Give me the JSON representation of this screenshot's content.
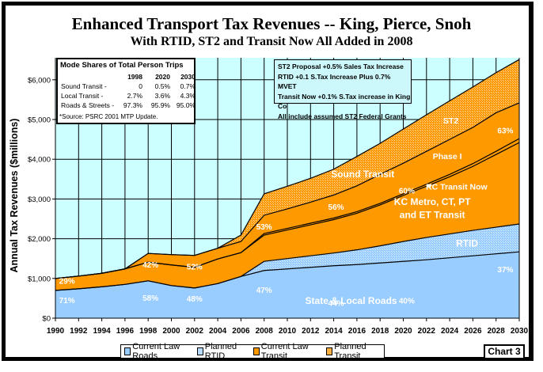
{
  "chart_data": {
    "type": "area",
    "title": "Enhanced Transport Tax Revenues -- King, Pierce, Snoh",
    "subtitle": "With RTID, ST2 and Transit Now All Added in 2008",
    "xlabel": "",
    "ylabel": "Annual Tax Revenues  ($millions)",
    "xlim": [
      1990,
      2030
    ],
    "ylim": [
      0,
      6500
    ],
    "grid": true,
    "x_ticks": [
      "1990",
      "1992",
      "1994",
      "1996",
      "1998",
      "2000",
      "2002",
      "2004",
      "2006",
      "2008",
      "2010",
      "2012",
      "2014",
      "2016",
      "2018",
      "2020",
      "2022",
      "2024",
      "2026",
      "2028",
      "2030"
    ],
    "y_ticks": [
      {
        "value": 0,
        "label": "$0"
      },
      {
        "value": 1000,
        "label": "$1,000"
      },
      {
        "value": 2000,
        "label": "$2,000"
      },
      {
        "value": 3000,
        "label": "$3,000"
      },
      {
        "value": 4000,
        "label": "$4,000"
      },
      {
        "value": 5000,
        "label": "$5,000"
      },
      {
        "value": 6000,
        "label": "$6,000"
      }
    ],
    "x": [
      1990,
      1992,
      1994,
      1996,
      1998,
      2000,
      2002,
      2004,
      2006,
      2008,
      2010,
      2012,
      2014,
      2016,
      2018,
      2020,
      2022,
      2024,
      2026,
      2028,
      2030
    ],
    "stacked_boundaries_note": "cumulative tops of each band in $millions",
    "series": [
      {
        "name": "Current Law Roads",
        "legend": true,
        "color": "#99ccff",
        "pattern": false,
        "top": [
          700,
          740,
          790,
          850,
          940,
          820,
          760,
          870,
          1050,
          1200,
          1240,
          1280,
          1320,
          1350,
          1390,
          1430,
          1470,
          1520,
          1570,
          1620,
          1670
        ]
      },
      {
        "name": "Planned RTID",
        "legend": true,
        "color": "#99ccff",
        "pattern": true,
        "top": [
          700,
          740,
          790,
          850,
          940,
          820,
          760,
          870,
          1050,
          1430,
          1500,
          1570,
          1640,
          1720,
          1820,
          1930,
          2030,
          2120,
          2210,
          2290,
          2370
        ]
      },
      {
        "name": "Current Law Transit",
        "legend": true,
        "color": "#ff9900",
        "pattern": false,
        "top": [
          1000,
          1060,
          1130,
          1240,
          1410,
          1340,
          1280,
          1490,
          1650,
          2090,
          2220,
          2350,
          2480,
          2640,
          2850,
          3090,
          3320,
          3560,
          3820,
          4120,
          4420
        ]
      },
      {
        "name": "Transit Now",
        "legend": false,
        "color": "#ff9900",
        "pattern": false,
        "top": [
          1000,
          1060,
          1130,
          1240,
          1410,
          1340,
          1280,
          1490,
          1650,
          2130,
          2260,
          2390,
          2520,
          2680,
          2890,
          3130,
          3370,
          3620,
          3890,
          4200,
          4520
        ]
      },
      {
        "name": "Sound Transit Phase I",
        "legend": false,
        "color": "#ff9900",
        "pattern": false,
        "top": [
          1000,
          1060,
          1130,
          1240,
          1630,
          1600,
          1580,
          1760,
          1930,
          2590,
          2750,
          2920,
          3100,
          3330,
          3620,
          3900,
          4200,
          4500,
          4800,
          5170,
          5420
        ]
      },
      {
        "name": "Planned Transit (ST2)",
        "legend": true,
        "color": "#ff9900",
        "pattern": true,
        "top": [
          1000,
          1060,
          1130,
          1240,
          1630,
          1600,
          1580,
          1760,
          2090,
          3130,
          3320,
          3520,
          3750,
          4070,
          4400,
          4760,
          5120,
          5470,
          5820,
          6180,
          6510
        ]
      }
    ],
    "annotations": [
      {
        "text": "29%",
        "x": 1991,
        "y": 870
      },
      {
        "text": "71%",
        "x": 1991,
        "y": 380
      },
      {
        "text": "42%",
        "x": 1998.2,
        "y": 1270
      },
      {
        "text": "58%",
        "x": 1998.2,
        "y": 440
      },
      {
        "text": "52%",
        "x": 2002,
        "y": 1230
      },
      {
        "text": "48%",
        "x": 2002,
        "y": 420
      },
      {
        "text": "53%",
        "x": 2008,
        "y": 2230
      },
      {
        "text": "47%",
        "x": 2008,
        "y": 640
      },
      {
        "text": "56%",
        "x": 2014.2,
        "y": 2730
      },
      {
        "text": "44%",
        "x": 2014.2,
        "y": 310
      },
      {
        "text": "60%",
        "x": 2020.3,
        "y": 3140
      },
      {
        "text": "40%",
        "x": 2020.3,
        "y": 370
      },
      {
        "text": "63%",
        "x": 2028.8,
        "y": 4650
      },
      {
        "text": "37%",
        "x": 2028.8,
        "y": 1160
      },
      {
        "text": "Sound Transit",
        "x": 2016.5,
        "y": 3550
      },
      {
        "text": "ST2",
        "x": 2024.1,
        "y": 4900
      },
      {
        "text": "Phase I",
        "x": 2023.8,
        "y": 4000
      },
      {
        "text": "KC Transit Now",
        "x": 2024.6,
        "y": 3240,
        "arrow_to": [
          2022,
          3380
        ]
      },
      {
        "text": "KC Metro, CT, PT",
        "x": 2022.5,
        "y": 2850
      },
      {
        "text": "and ET Transit",
        "x": 2022.5,
        "y": 2520
      },
      {
        "text": "RTID",
        "x": 2025.5,
        "y": 1800
      },
      {
        "text": "State & Local Roads",
        "x": 2015.5,
        "y": 360
      }
    ],
    "legend_position": "bottom"
  },
  "mode_shares": {
    "title": "Mode Shares of Total Person Trips",
    "years": [
      "1998",
      "2020",
      "2030"
    ],
    "rows": [
      {
        "label": "Sound Transit -",
        "values": [
          "0",
          "0.5%",
          "0.7%"
        ]
      },
      {
        "label": "Local Transit -",
        "values": [
          "2.7%",
          "3.6%",
          "4.3%"
        ]
      },
      {
        "label": "Roads & Streets -",
        "values": [
          "97.3%",
          "95.9%",
          "95.0%"
        ]
      }
    ],
    "source": "*Source:  PSRC 2001 MTP Update."
  },
  "notes": [
    "ST2 Proposal +0.5% Sales Tax Increase",
    "RTID +0.1 S.Tax Increase Plus 0.7% MVET",
    "Transit Now +0.1% S.Tax increase in King Co",
    "All include assumed ST2 Federal Grants"
  ],
  "legend": [
    {
      "label": "Current Law Roads",
      "color": "#99ccff"
    },
    {
      "label": "Planned RTID",
      "color": "#99ccff"
    },
    {
      "label": "Current Law Transit",
      "color": "#ff9900"
    },
    {
      "label": "Planned Transit",
      "color": "#ff9900"
    }
  ],
  "chart_tag": "Chart 3",
  "colors": {
    "plot_bg": "#ccffff",
    "roads": "#99ccff",
    "transit": "#ff9900",
    "pattern_roads": "#c0e0ff",
    "pattern_transit": "#ffc266"
  }
}
